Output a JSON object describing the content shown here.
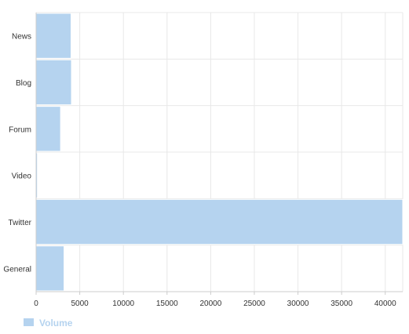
{
  "colors": {
    "bar": "#b5d3ef",
    "bar_stroke": "#ffffff",
    "grid": "#e8e8e8",
    "axis": "#cccccc",
    "legend_text": "#b5d3ef"
  },
  "chart_data": {
    "type": "bar",
    "orientation": "horizontal",
    "categories": [
      "News",
      "Blog",
      "Forum",
      "Video",
      "Twitter",
      "General"
    ],
    "series": [
      {
        "name": "Volume",
        "values": [
          4000,
          4050,
          2800,
          150,
          42000,
          3200
        ]
      }
    ],
    "xlim": [
      0,
      42000
    ],
    "xticks": [
      0,
      5000,
      10000,
      15000,
      20000,
      25000,
      30000,
      35000,
      40000
    ],
    "grid": true,
    "legend": "bottom-left",
    "title": "",
    "xlabel": "",
    "ylabel": ""
  }
}
